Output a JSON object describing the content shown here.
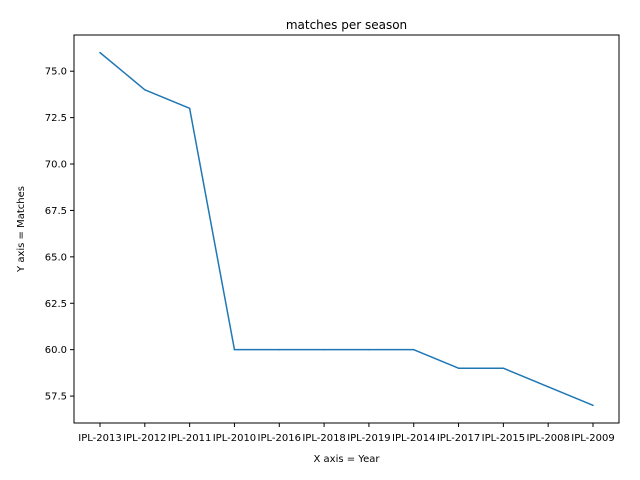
{
  "chart_data": {
    "type": "line",
    "title": "matches per season",
    "xlabel": "X axis = Year",
    "ylabel": "Y axis = Matches",
    "categories": [
      "IPL-2013",
      "IPL-2012",
      "IPL-2011",
      "IPL-2010",
      "IPL-2016",
      "IPL-2018",
      "IPL-2019",
      "IPL-2014",
      "IPL-2017",
      "IPL-2015",
      "IPL-2008",
      "IPL-2009"
    ],
    "series": [
      {
        "values": [
          76,
          74,
          73,
          60,
          60,
          60,
          60,
          60,
          59,
          59,
          58,
          57
        ],
        "color": "#1f77b4"
      }
    ],
    "ylim": [
      56.05,
      76.95
    ],
    "yticks": [
      "57.5",
      "60.0",
      "62.5",
      "65.0",
      "67.5",
      "70.0",
      "72.5",
      "75.0"
    ],
    "grid": false,
    "legend": "none"
  }
}
